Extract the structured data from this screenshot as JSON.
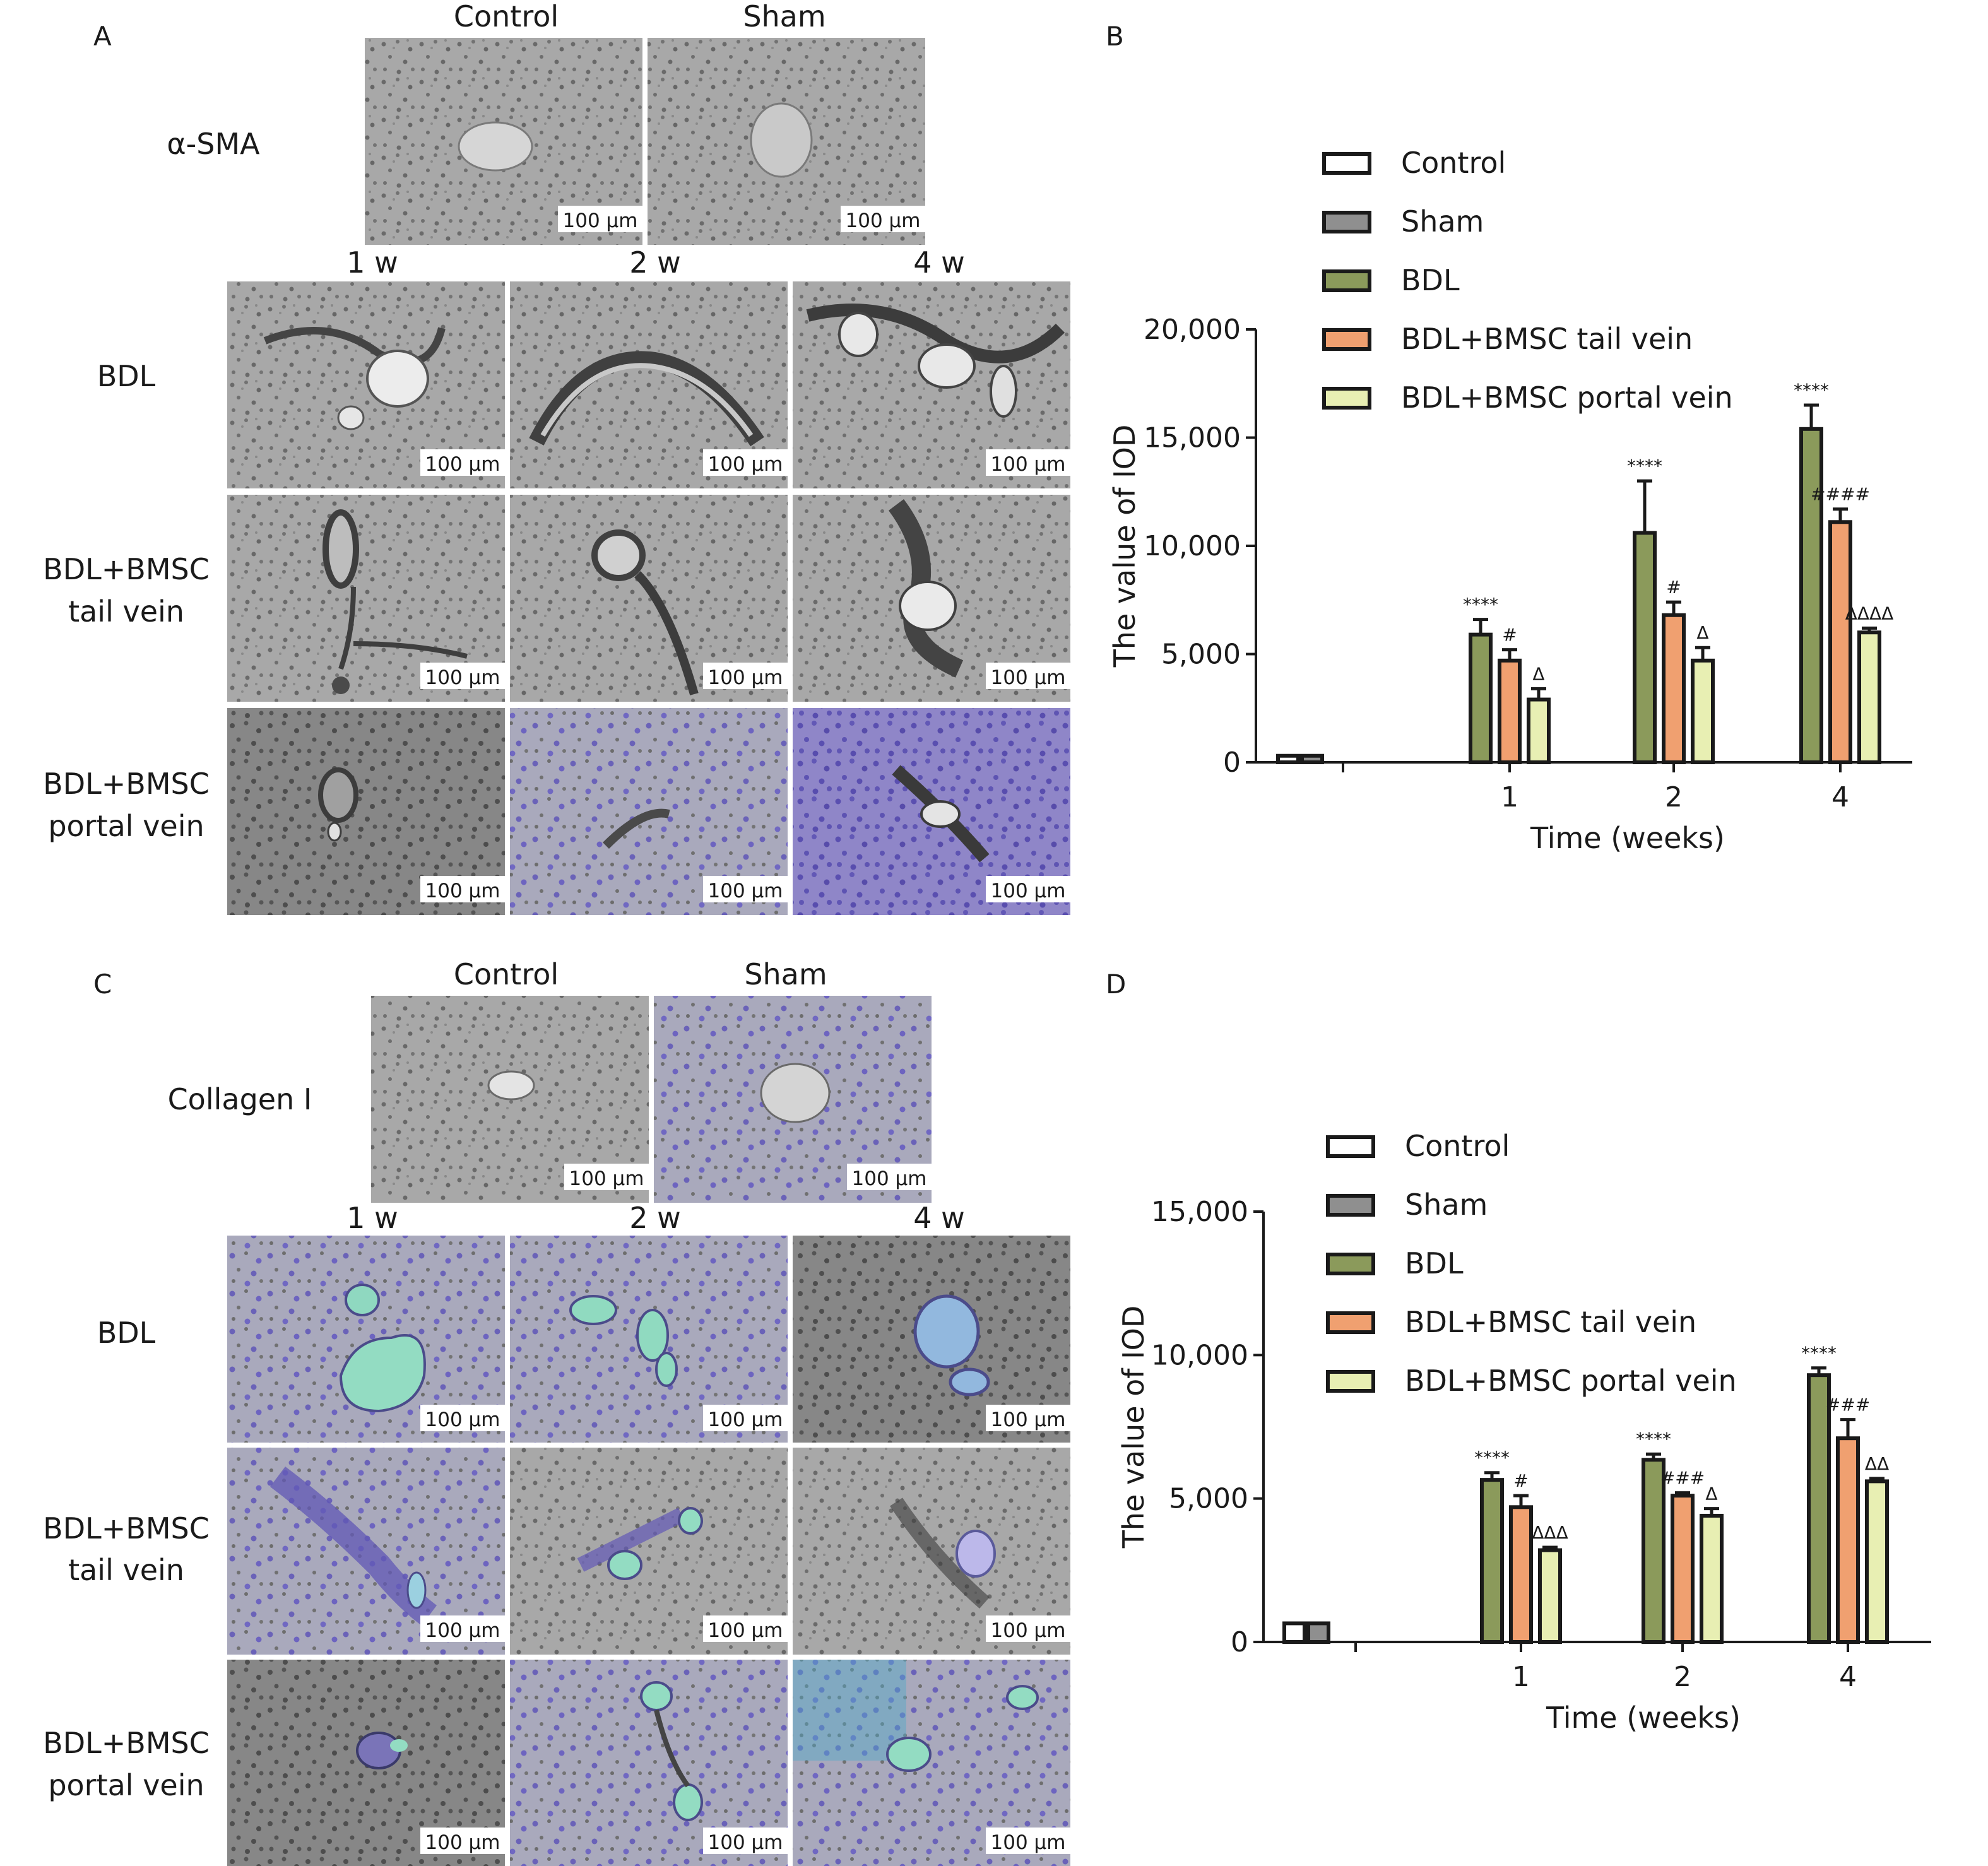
{
  "panels": {
    "A": {
      "letter": "A",
      "marker_label": "α-SMA",
      "control_col": "Control",
      "sham_col": "Sham",
      "time_cols": [
        "1 w",
        "2 w",
        "4 w"
      ],
      "rows": [
        {
          "line1": "BDL",
          "line2": ""
        },
        {
          "line1": "BDL+BMSC",
          "line2": "tail vein"
        },
        {
          "line1": "BDL+BMSC",
          "line2": "portal vein"
        }
      ],
      "scale_bar": "100 µm"
    },
    "C": {
      "letter": "C",
      "marker_label": "Collagen I",
      "control_col": "Control",
      "sham_col": "Sham",
      "time_cols": [
        "1 w",
        "2 w",
        "4 w"
      ],
      "rows": [
        {
          "line1": "BDL",
          "line2": ""
        },
        {
          "line1": "BDL+BMSC",
          "line2": "tail vein"
        },
        {
          "line1": "BDL+BMSC",
          "line2": "portal vein"
        }
      ],
      "scale_bar": "100 µm"
    },
    "B": {
      "letter": "B"
    },
    "D": {
      "letter": "D"
    }
  },
  "chart_data": [
    {
      "panel": "B",
      "type": "bar",
      "xlabel": "Time (weeks)",
      "ylabel": "The value of IOD",
      "ylim": [
        0,
        20000
      ],
      "yticks": [
        0,
        5000,
        10000,
        15000,
        20000
      ],
      "ytick_labels": [
        "0",
        "5,000",
        "10,000",
        "15,000",
        "20,000"
      ],
      "legend_position": "top-left (inside plot)",
      "baseline_series": [
        {
          "name": "Control",
          "value": 300,
          "error": 80,
          "color": "#ffffff"
        },
        {
          "name": "Sham",
          "value": 300,
          "error": 80,
          "color": "#8f8f8f"
        }
      ],
      "categories": [
        "1",
        "2",
        "4"
      ],
      "series": [
        {
          "name": "BDL",
          "color": "#8b9a5b",
          "values": [
            5900,
            10600,
            15400
          ],
          "errors": [
            700,
            2400,
            1100
          ],
          "labels": [
            "****",
            "****",
            "****"
          ]
        },
        {
          "name": "BDL+BMSC tail vein",
          "color": "#f0a070",
          "values": [
            4700,
            6800,
            11100
          ],
          "errors": [
            500,
            600,
            600
          ],
          "labels": [
            "#",
            "#",
            "####"
          ]
        },
        {
          "name": "BDL+BMSC portal vein",
          "color": "#e8efb3",
          "values": [
            2900,
            4700,
            6000
          ],
          "errors": [
            500,
            600,
            200
          ],
          "labels": [
            "Δ",
            "Δ",
            "ΔΔΔΔ"
          ]
        }
      ]
    },
    {
      "panel": "D",
      "type": "bar",
      "xlabel": "Time (weeks)",
      "ylabel": "The value of IOD",
      "ylim": [
        0,
        15000
      ],
      "yticks": [
        0,
        5000,
        10000,
        15000
      ],
      "ytick_labels": [
        "0",
        "5,000",
        "10,000",
        "15,000"
      ],
      "legend_position": "top-left (inside plot)",
      "baseline_series": [
        {
          "name": "Control",
          "value": 650,
          "error": 50,
          "color": "#ffffff"
        },
        {
          "name": "Sham",
          "value": 650,
          "error": 50,
          "color": "#8f8f8f"
        }
      ],
      "categories": [
        "1",
        "2",
        "4"
      ],
      "series": [
        {
          "name": "BDL",
          "color": "#8b9a5b",
          "values": [
            5650,
            6350,
            9300
          ],
          "errors": [
            250,
            200,
            250
          ],
          "labels": [
            "****",
            "****",
            "****"
          ]
        },
        {
          "name": "BDL+BMSC tail vein",
          "color": "#f0a070",
          "values": [
            4700,
            5100,
            7100
          ],
          "errors": [
            400,
            100,
            650
          ],
          "labels": [
            "#",
            "###",
            "###"
          ]
        },
        {
          "name": "BDL+BMSC portal vein",
          "color": "#e8efb3",
          "values": [
            3200,
            4400,
            5600
          ],
          "errors": [
            100,
            250,
            100
          ],
          "labels": [
            "ΔΔΔ",
            "Δ",
            "ΔΔ"
          ]
        }
      ]
    }
  ]
}
